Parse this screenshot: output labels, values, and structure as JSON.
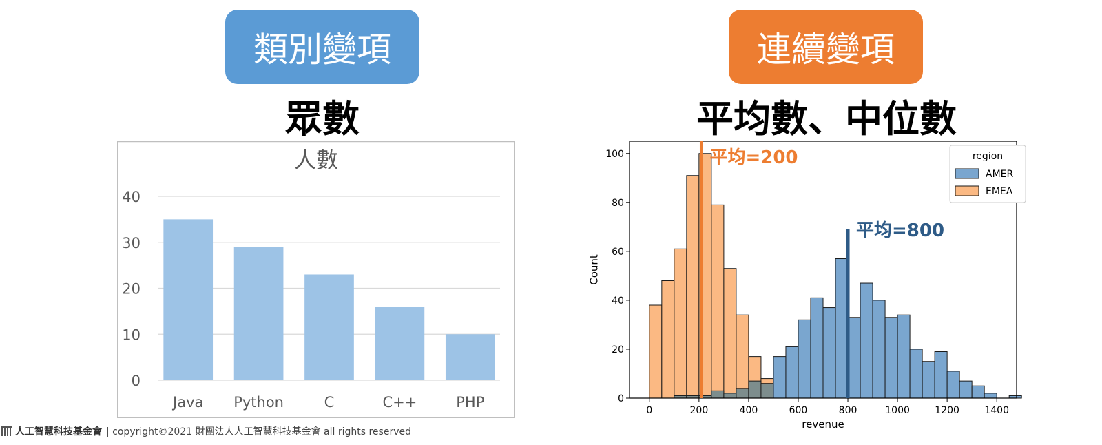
{
  "left_tag": "類別變項",
  "left_heading": "眾數",
  "right_tag": "連續變項",
  "right_heading": "平均數、中位數",
  "footer": {
    "org_name": "人工智慧科技基金會",
    "copyright": "| copyright©2021 財團法人人工智慧科技基金會 all rights reserved"
  },
  "colors": {
    "blue_pill": "#5b9bd5",
    "orange_pill": "#ed7d31",
    "bar_fill": "#9dc3e6",
    "hist_amer": "#7aa6cf",
    "hist_emea": "#fbb983",
    "hist_overlap": "#7d8d8d",
    "mean_orange": "#ed7d31",
    "mean_blue": "#2e5b87"
  },
  "chart_data": [
    {
      "type": "bar",
      "title": "人數",
      "categories": [
        "Java",
        "Python",
        "C",
        "C++",
        "PHP"
      ],
      "values": [
        35,
        29,
        23,
        16,
        10
      ],
      "ylim": [
        0,
        40
      ],
      "yticks": [
        0,
        10,
        20,
        30,
        40
      ],
      "grid": true
    },
    {
      "type": "histogram",
      "xlabel": "revenue",
      "ylabel": "Count",
      "xlim": [
        -80,
        1480
      ],
      "ylim": [
        0,
        105
      ],
      "xticks": [
        0,
        200,
        400,
        600,
        800,
        1000,
        1200,
        1400
      ],
      "yticks": [
        0,
        20,
        40,
        60,
        80,
        100
      ],
      "bin_width": 50,
      "legend": {
        "title": "region",
        "position": "top-right",
        "entries": [
          "AMER",
          "EMEA"
        ]
      },
      "series": [
        {
          "name": "EMEA",
          "bins": [
            [
              0,
              38
            ],
            [
              50,
              48
            ],
            [
              100,
              61
            ],
            [
              150,
              91
            ],
            [
              200,
              100
            ],
            [
              250,
              79
            ],
            [
              300,
              53
            ],
            [
              350,
              34
            ],
            [
              400,
              17
            ],
            [
              450,
              8
            ]
          ]
        },
        {
          "name": "AMER",
          "bins": [
            [
              100,
              1
            ],
            [
              150,
              1
            ],
            [
              200,
              1
            ],
            [
              250,
              3
            ],
            [
              300,
              2
            ],
            [
              350,
              4
            ],
            [
              400,
              7
            ],
            [
              450,
              6
            ],
            [
              500,
              17
            ],
            [
              550,
              21
            ],
            [
              600,
              32
            ],
            [
              650,
              41
            ],
            [
              700,
              37
            ],
            [
              750,
              57
            ],
            [
              800,
              33
            ],
            [
              850,
              47
            ],
            [
              900,
              40
            ],
            [
              950,
              33
            ],
            [
              1000,
              34
            ],
            [
              1050,
              20
            ],
            [
              1100,
              15
            ],
            [
              1150,
              19
            ],
            [
              1200,
              11
            ],
            [
              1250,
              7
            ],
            [
              1300,
              5
            ],
            [
              1350,
              2
            ],
            [
              1400,
              0
            ],
            [
              1450,
              1
            ]
          ]
        }
      ],
      "annotations": [
        {
          "series": "EMEA",
          "x": 210,
          "label": "平均=200",
          "color": "#ed7d31"
        },
        {
          "series": "AMER",
          "x": 800,
          "label": "平均=800",
          "color": "#2e5b87"
        }
      ]
    }
  ]
}
